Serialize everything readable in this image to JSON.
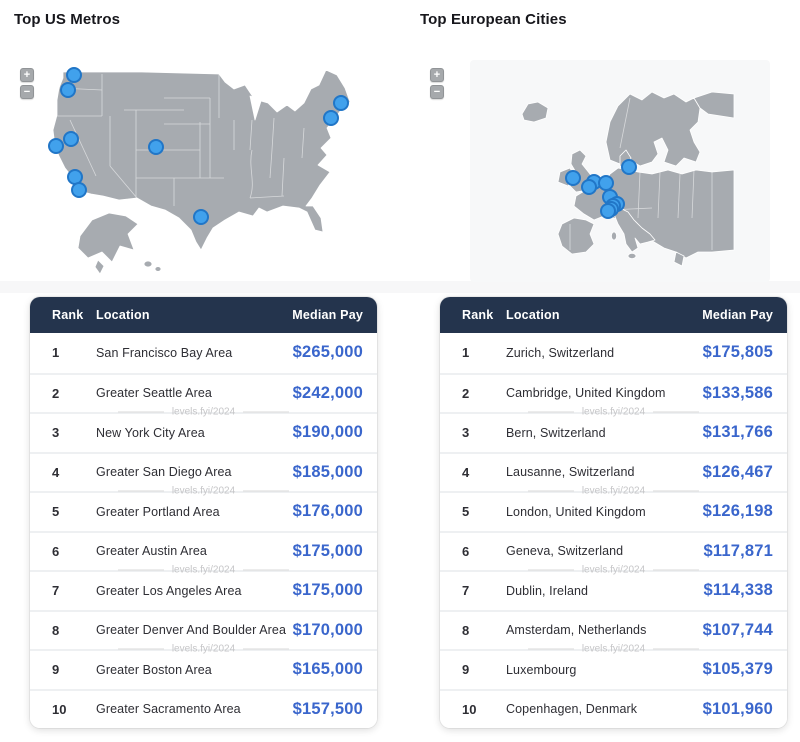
{
  "watermark": "levels.fyi/2024",
  "map_controls": {
    "zoom_in": "+",
    "zoom_out": "−"
  },
  "colors": {
    "table_header_bg": "#24344d",
    "median_pay_text": "#3a66cc",
    "map_land": "#a7abb0",
    "marker_fill": "#41a1ec",
    "marker_stroke": "#2176c7"
  },
  "panels": [
    {
      "title": "Top US Metros",
      "map": {
        "markers": [
          [
            60,
            17
          ],
          [
            54,
            32
          ],
          [
            57,
            81
          ],
          [
            42,
            88
          ],
          [
            142,
            89
          ],
          [
            61,
            119
          ],
          [
            65,
            132
          ],
          [
            327,
            45
          ],
          [
            317,
            60
          ],
          [
            187,
            159
          ]
        ]
      },
      "table": {
        "columns": [
          "Rank",
          "Location",
          "Median Pay"
        ],
        "rows": [
          {
            "rank": "1",
            "location": "San Francisco Bay Area",
            "pay": "$265,000"
          },
          {
            "rank": "2",
            "location": "Greater Seattle Area",
            "pay": "$242,000"
          },
          {
            "rank": "3",
            "location": "New York City Area",
            "pay": "$190,000"
          },
          {
            "rank": "4",
            "location": "Greater San Diego Area",
            "pay": "$185,000"
          },
          {
            "rank": "5",
            "location": "Greater Portland Area",
            "pay": "$176,000"
          },
          {
            "rank": "6",
            "location": "Greater Austin Area",
            "pay": "$175,000"
          },
          {
            "rank": "7",
            "location": "Greater Los Angeles Area",
            "pay": "$175,000"
          },
          {
            "rank": "8",
            "location": "Greater Denver And Boulder Area",
            "pay": "$170,000"
          },
          {
            "rank": "9",
            "location": "Greater Boston Area",
            "pay": "$165,000"
          },
          {
            "rank": "10",
            "location": "Greater Sacramento Area",
            "pay": "$157,500"
          }
        ]
      }
    },
    {
      "title": "Top European Cities",
      "map": {
        "markers": [
          [
            205,
            109
          ],
          [
            149,
            120
          ],
          [
            170,
            124
          ],
          [
            165,
            129
          ],
          [
            182,
            125
          ],
          [
            186,
            139
          ],
          [
            193,
            146
          ],
          [
            189,
            148
          ],
          [
            187,
            151
          ],
          [
            184,
            153
          ]
        ]
      },
      "table": {
        "columns": [
          "Rank",
          "Location",
          "Median Pay"
        ],
        "rows": [
          {
            "rank": "1",
            "location": "Zurich, Switzerland",
            "pay": "$175,805"
          },
          {
            "rank": "2",
            "location": "Cambridge, United Kingdom",
            "pay": "$133,586"
          },
          {
            "rank": "3",
            "location": "Bern, Switzerland",
            "pay": "$131,766"
          },
          {
            "rank": "4",
            "location": "Lausanne, Switzerland",
            "pay": "$126,467"
          },
          {
            "rank": "5",
            "location": "London, United Kingdom",
            "pay": "$126,198"
          },
          {
            "rank": "6",
            "location": "Geneva, Switzerland",
            "pay": "$117,871"
          },
          {
            "rank": "7",
            "location": "Dublin, Ireland",
            "pay": "$114,338"
          },
          {
            "rank": "8",
            "location": "Amsterdam, Netherlands",
            "pay": "$107,744"
          },
          {
            "rank": "9",
            "location": "Luxembourg",
            "pay": "$105,379"
          },
          {
            "rank": "10",
            "location": "Copenhagen, Denmark",
            "pay": "$101,960"
          }
        ]
      }
    }
  ]
}
